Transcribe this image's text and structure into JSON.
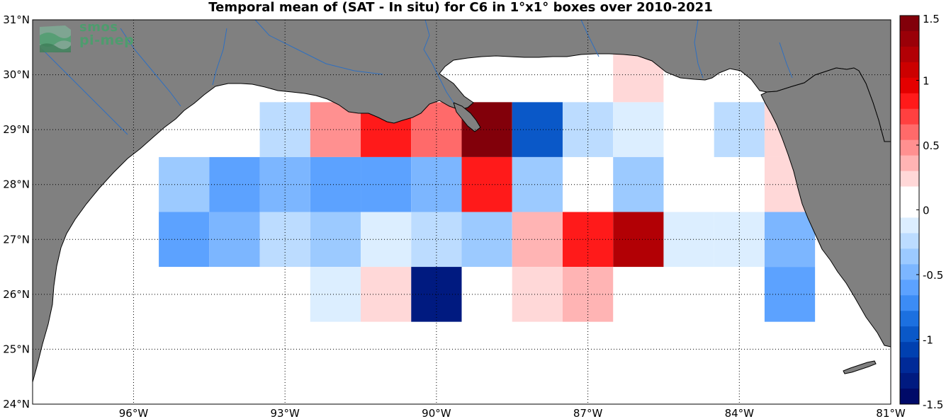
{
  "title": "Temporal mean of (SAT - In situ) for C6 in 1°x1° boxes over 2010-2021",
  "logo": {
    "line1": "smos",
    "line2": "pi-mep"
  },
  "lon_ticks": [
    "96°W",
    "93°W",
    "90°W",
    "87°W",
    "84°W",
    "81°W"
  ],
  "lat_ticks": [
    "24°N",
    "25°N",
    "26°N",
    "27°N",
    "28°N",
    "29°N",
    "30°N",
    "31°N"
  ],
  "colorbar": {
    "tick_labels": [
      "1.5",
      "1",
      "0.5",
      "0",
      "-0.5",
      "-1",
      "-1.5"
    ],
    "tick_values": [
      1.5,
      1,
      0.5,
      0,
      -0.5,
      -1,
      -1.5
    ],
    "colors": [
      "#82000a",
      "#9a0008",
      "#b20005",
      "#cc0000",
      "#e40000",
      "#ff1a1a",
      "#ff4040",
      "#ff6a6a",
      "#ff9090",
      "#ffb4b4",
      "#ffd8d8",
      "#ffffff",
      "#ffffff",
      "#dceeff",
      "#bcdcff",
      "#9ccaff",
      "#7cb6ff",
      "#5ca2ff",
      "#3c8cf5",
      "#1c70e0",
      "#0a58c8",
      "#0040b0",
      "#002a98",
      "#001a80",
      "#000a68"
    ],
    "range": [
      -1.5,
      1.5
    ]
  },
  "chart_data": {
    "type": "heatmap",
    "title": "Temporal mean of (SAT - In situ) for C6 in 1°x1° boxes over 2010-2021",
    "xlabel": "",
    "ylabel": "",
    "lon_range": [
      -98,
      -81
    ],
    "lat_range": [
      24,
      31
    ],
    "cell_size_deg": 1,
    "units": "",
    "cells": [
      {
        "lon": -93,
        "lat": 29,
        "value": -0.25
      },
      {
        "lon": -92,
        "lat": 29,
        "value": 0.45
      },
      {
        "lon": -91,
        "lat": 29,
        "value": 0.8
      },
      {
        "lon": -90,
        "lat": 29,
        "value": 0.6
      },
      {
        "lon": -89,
        "lat": 29,
        "value": 1.45
      },
      {
        "lon": -88,
        "lat": 29,
        "value": -0.9
      },
      {
        "lon": -87,
        "lat": 29,
        "value": -0.25
      },
      {
        "lon": -86,
        "lat": 29,
        "value": -0.15
      },
      {
        "lon": -84,
        "lat": 29,
        "value": -0.25
      },
      {
        "lon": -83,
        "lat": 29,
        "value": 0.25
      },
      {
        "lon": -86,
        "lat": 30,
        "value": 0.25
      },
      {
        "lon": -85,
        "lat": 30,
        "value": 0.15
      },
      {
        "lon": -95,
        "lat": 28,
        "value": -0.35
      },
      {
        "lon": -94,
        "lat": 28,
        "value": -0.6
      },
      {
        "lon": -93,
        "lat": 28,
        "value": -0.5
      },
      {
        "lon": -92,
        "lat": 28,
        "value": -0.6
      },
      {
        "lon": -91,
        "lat": 28,
        "value": -0.6
      },
      {
        "lon": -90,
        "lat": 28,
        "value": -0.5
      },
      {
        "lon": -89,
        "lat": 28,
        "value": 0.85
      },
      {
        "lon": -88,
        "lat": 28,
        "value": -0.3
      },
      {
        "lon": -86,
        "lat": 28,
        "value": -0.3
      },
      {
        "lon": -83,
        "lat": 28,
        "value": 0.25
      },
      {
        "lon": -96,
        "lat": 27,
        "value": 0.1
      },
      {
        "lon": -95,
        "lat": 27,
        "value": -0.6
      },
      {
        "lon": -94,
        "lat": 27,
        "value": -0.5
      },
      {
        "lon": -93,
        "lat": 27,
        "value": -0.25
      },
      {
        "lon": -92,
        "lat": 27,
        "value": -0.35
      },
      {
        "lon": -91,
        "lat": 27,
        "value": -0.1
      },
      {
        "lon": -90,
        "lat": 27,
        "value": -0.25
      },
      {
        "lon": -89,
        "lat": 27,
        "value": -0.35
      },
      {
        "lon": -88,
        "lat": 27,
        "value": 0.4
      },
      {
        "lon": -87,
        "lat": 27,
        "value": 0.85
      },
      {
        "lon": -86,
        "lat": 27,
        "value": 1.15
      },
      {
        "lon": -85,
        "lat": 27,
        "value": -0.1
      },
      {
        "lon": -84,
        "lat": 27,
        "value": -0.1
      },
      {
        "lon": -83,
        "lat": 27,
        "value": -0.45
      },
      {
        "lon": -92,
        "lat": 26,
        "value": -0.1
      },
      {
        "lon": -91,
        "lat": 26,
        "value": 0.25
      },
      {
        "lon": -90,
        "lat": 26,
        "value": -1.3
      },
      {
        "lon": -88,
        "lat": 26,
        "value": 0.25
      },
      {
        "lon": -87,
        "lat": 26,
        "value": 0.4
      },
      {
        "lon": -83,
        "lat": 26,
        "value": -0.55
      }
    ]
  }
}
